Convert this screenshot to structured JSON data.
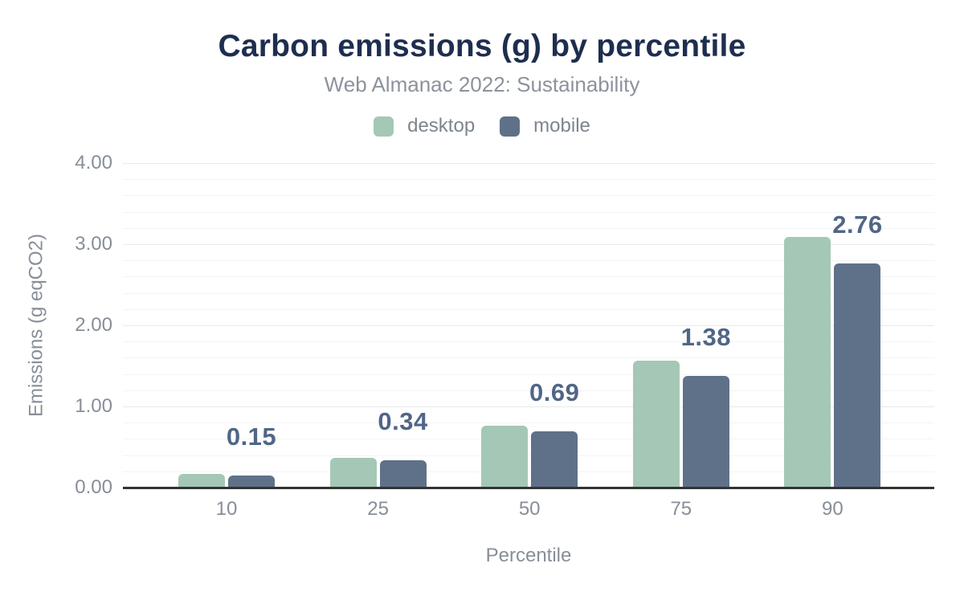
{
  "chart_data": {
    "type": "bar",
    "title": "Carbon emissions (g) by percentile",
    "subtitle": "Web Almanac 2022: Sustainability",
    "xlabel": "Percentile",
    "ylabel": "Emissions (g eqCO2)",
    "categories": [
      "10",
      "25",
      "50",
      "75",
      "90"
    ],
    "series": [
      {
        "name": "desktop",
        "color": "#a4c8b5",
        "values": [
          0.17,
          0.37,
          0.76,
          1.56,
          3.09
        ]
      },
      {
        "name": "mobile",
        "color": "#5f7189",
        "values": [
          0.15,
          0.34,
          0.69,
          1.38,
          2.76
        ]
      }
    ],
    "data_labels": {
      "on_series": "mobile",
      "values": [
        "0.15",
        "0.34",
        "0.69",
        "1.38",
        "2.76"
      ],
      "color": "#506687"
    },
    "ylim": [
      0,
      4
    ],
    "yticks": [
      {
        "value": 0,
        "label": "0.00"
      },
      {
        "value": 1,
        "label": "1.00"
      },
      {
        "value": 2,
        "label": "2.00"
      },
      {
        "value": 3,
        "label": "3.00"
      },
      {
        "value": 4,
        "label": "4.00"
      }
    ],
    "grid": {
      "show": true,
      "minor_step": 0.2,
      "major_step": 1
    },
    "legend_position": "top",
    "colors": {
      "title": "#1e2e4f",
      "subtitle": "#8b939c",
      "axis_text": "#878e98",
      "axis_line": "#333333"
    }
  }
}
